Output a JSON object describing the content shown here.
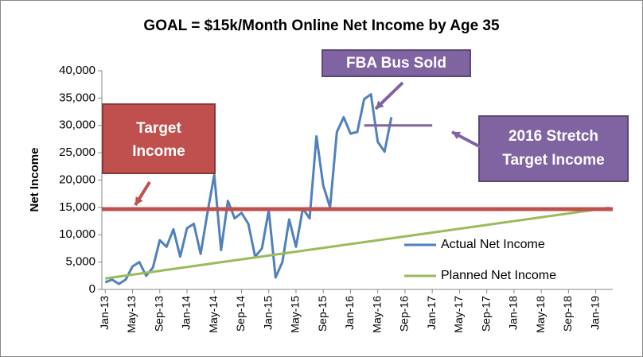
{
  "chart_data": {
    "type": "line",
    "title": "GOAL = $15k/Month Online Net Income by Age 35",
    "y_label": "Net Income",
    "categories": [
      "Jan-13",
      null,
      null,
      null,
      "May-13",
      null,
      null,
      null,
      "Sep-13",
      null,
      null,
      null,
      "Jan-14",
      null,
      null,
      null,
      "May-14",
      null,
      null,
      null,
      "Sep-14",
      null,
      null,
      null,
      "Jan-15",
      null,
      null,
      null,
      "May-15",
      null,
      null,
      null,
      "Sep-15",
      null,
      null,
      null,
      "Jan-16",
      null,
      null,
      null,
      "May-16",
      null,
      null,
      null,
      "Sep-16",
      null,
      null,
      null,
      "Jan-17",
      null,
      null,
      null,
      "May-17",
      null,
      null,
      null,
      "Sep-17",
      null,
      null,
      null,
      "Jan-18",
      null,
      null,
      null,
      "May-18",
      null,
      null,
      null,
      "Sep-18",
      null,
      null,
      null,
      "Jan-19",
      null,
      null
    ],
    "series": [
      {
        "name": "Actual Net Income",
        "color": "#4f81bd",
        "values": [
          1300,
          1800,
          1000,
          1800,
          4200,
          5000,
          2500,
          4000,
          9000,
          7800,
          11000,
          6000,
          11200,
          12000,
          6500,
          14000,
          21000,
          7200,
          16200,
          13000,
          14000,
          12000,
          6000,
          7500,
          14500,
          2200,
          5000,
          12800,
          7800,
          14800,
          13000,
          28000,
          19000,
          15000,
          28800,
          31500,
          28500,
          28800,
          34800,
          35700,
          27000,
          25200,
          31500,
          null,
          null,
          null,
          null,
          null,
          null,
          null,
          null,
          null,
          null,
          null,
          null,
          null,
          null,
          null,
          null,
          null,
          null,
          null,
          null,
          null,
          null,
          null,
          null,
          null,
          null,
          null,
          null,
          null,
          null,
          null,
          null
        ]
      },
      {
        "name": "Planned Net Income",
        "color": "#9bbb59",
        "values": [
          2000,
          2175,
          2350,
          2525,
          2700,
          2875,
          3050,
          3225,
          3400,
          3575,
          3750,
          3925,
          4100,
          4275,
          4450,
          4625,
          4800,
          4975,
          5150,
          5325,
          5500,
          5675,
          5850,
          6025,
          6200,
          6375,
          6550,
          6725,
          6900,
          7075,
          7250,
          7425,
          7600,
          7775,
          7950,
          8125,
          8300,
          8475,
          8650,
          8825,
          9000,
          9175,
          9350,
          9525,
          9700,
          9875,
          10050,
          10225,
          10400,
          10575,
          10750,
          10925,
          11100,
          11275,
          11450,
          11625,
          11800,
          11975,
          12150,
          12325,
          12500,
          12675,
          12850,
          13025,
          13200,
          13375,
          13550,
          13725,
          13900,
          14075,
          14250,
          14425,
          14600,
          14775,
          14950
        ]
      }
    ],
    "ylim": [
      0,
      40000
    ],
    "yticks": [
      0,
      {
        "value": 5000,
        "label": "5,000"
      },
      {
        "value": 10000,
        "label": "10,000"
      },
      {
        "value": 15000,
        "label": "15,000"
      },
      {
        "value": 20000,
        "label": "20,000"
      },
      {
        "value": 25000,
        "label": "25,000"
      },
      {
        "value": 30000,
        "label": "30,000"
      },
      {
        "value": 35000,
        "label": "35,000"
      },
      {
        "value": 40000,
        "label": "40,000"
      }
    ],
    "reference_lines": [
      {
        "value": 14700,
        "color": "#c0504d"
      },
      {
        "value": 30000,
        "color": "#8064a2"
      }
    ],
    "annotations": [
      {
        "lines": [
          "Target",
          "Income"
        ]
      },
      {
        "lines": [
          "FBA Bus Sold"
        ]
      },
      {
        "lines": [
          "2016  Stretch",
          "Target Income"
        ]
      }
    ],
    "legend": "right"
  }
}
